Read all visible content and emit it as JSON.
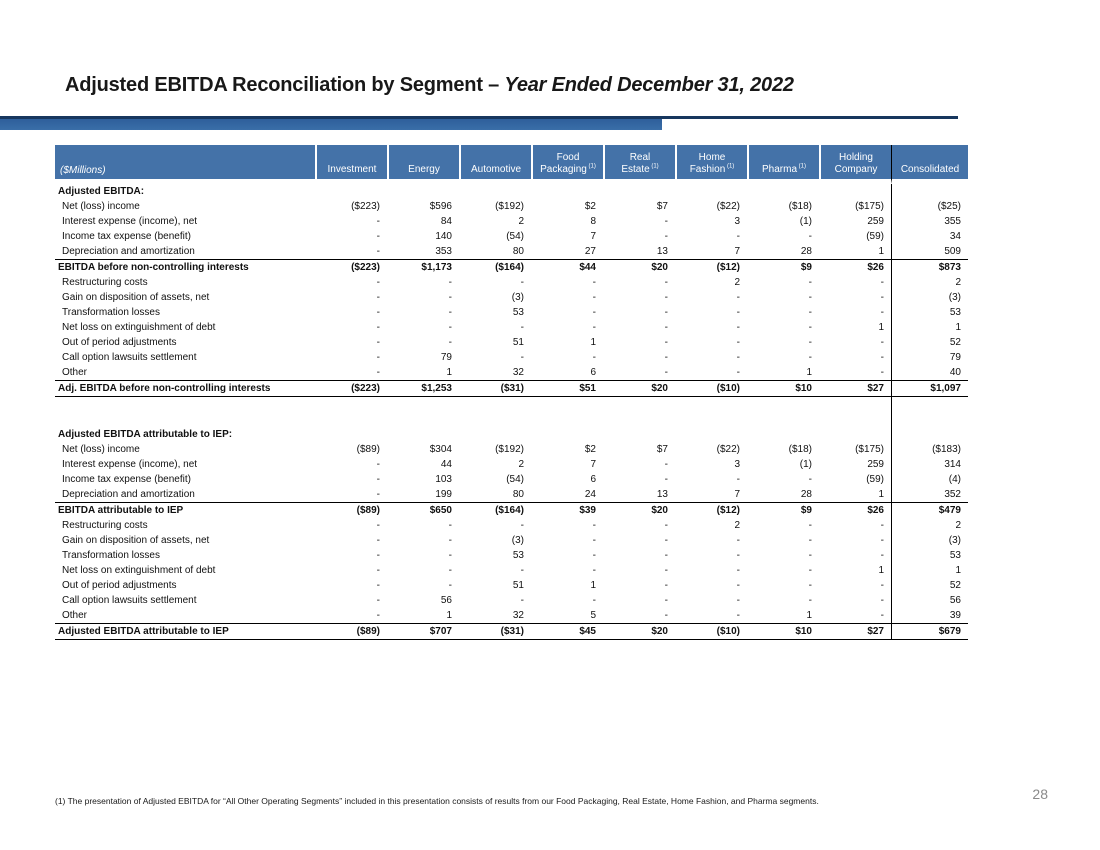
{
  "theme": {
    "header_bg": "#4472A8",
    "header_text": "#FFFFFF",
    "accent_bar": "#2E5F9B",
    "accent_bar2": "#3A6EA8",
    "accent_line": "#17375E",
    "border_color": "#000000",
    "page_number_color": "#8A8A8A"
  },
  "slide": {
    "title": {
      "regular": "Adjusted EBITDA Reconciliation by Segment – ",
      "italic": "Year Ended December 31, 2022"
    },
    "footnote": "(1) The presentation of Adjusted EBITDA for “All Other Operating Segments” included in this presentation consists of results from our Food Packaging, Real Estate, Home Fashion, and Pharma segments.",
    "page_number": "28"
  },
  "table": {
    "row_label_header": "($Millions)",
    "columns": [
      {
        "lines": [
          "Investment"
        ],
        "sup": ""
      },
      {
        "lines": [
          "Energy"
        ],
        "sup": ""
      },
      {
        "lines": [
          "Automotive"
        ],
        "sup": ""
      },
      {
        "lines": [
          "Food",
          "Packaging"
        ],
        "sup": "(1)"
      },
      {
        "lines": [
          "Real",
          "Estate"
        ],
        "sup": "(1)"
      },
      {
        "lines": [
          "Home",
          "Fashion"
        ],
        "sup": "(1)"
      },
      {
        "lines": [
          "Pharma"
        ],
        "sup": "(1)"
      },
      {
        "lines": [
          "Holding",
          "Company"
        ],
        "sup": ""
      },
      {
        "lines": [
          "Consolidated"
        ],
        "sup": ""
      }
    ],
    "rows": [
      {
        "type": "section",
        "label": "Adjusted EBITDA:",
        "values": []
      },
      {
        "type": "item",
        "label": "Net (loss) income",
        "values": [
          "($223)",
          "$596",
          "($192)",
          "$2",
          "$7",
          "($22)",
          "($18)",
          "($175)",
          "($25)"
        ]
      },
      {
        "type": "item",
        "label": "Interest expense (income), net",
        "values": [
          "-",
          "84",
          "2",
          "8",
          "-",
          "3",
          "(1)",
          "259",
          "355"
        ]
      },
      {
        "type": "item",
        "label": "Income tax expense (benefit)",
        "values": [
          "-",
          "140",
          "(54)",
          "7",
          "-",
          "-",
          "-",
          "(59)",
          "34"
        ]
      },
      {
        "type": "item",
        "label": "Depreciation and amortization",
        "values": [
          "-",
          "353",
          "80",
          "27",
          "13",
          "7",
          "28",
          "1",
          "509"
        ]
      },
      {
        "type": "subtotal",
        "label": "EBITDA before non-controlling interests",
        "values": [
          "($223)",
          "$1,173",
          "($164)",
          "$44",
          "$20",
          "($12)",
          "$9",
          "$26",
          "$873"
        ]
      },
      {
        "type": "item",
        "label": "Restructuring costs",
        "values": [
          "-",
          "-",
          "-",
          "-",
          "-",
          "2",
          "-",
          "-",
          "2"
        ]
      },
      {
        "type": "item",
        "label": "Gain on disposition of assets, net",
        "values": [
          "-",
          "-",
          "(3)",
          "-",
          "-",
          "-",
          "-",
          "-",
          "(3)"
        ]
      },
      {
        "type": "item",
        "label": "Transformation losses",
        "values": [
          "-",
          "-",
          "53",
          "-",
          "-",
          "-",
          "-",
          "-",
          "53"
        ]
      },
      {
        "type": "item",
        "label": "Net loss on extinguishment of debt",
        "values": [
          "-",
          "-",
          "-",
          "-",
          "-",
          "-",
          "-",
          "1",
          "1"
        ]
      },
      {
        "type": "item",
        "label": "Out of period adjustments",
        "values": [
          "-",
          "-",
          "51",
          "1",
          "-",
          "-",
          "-",
          "-",
          "52"
        ]
      },
      {
        "type": "item",
        "label": "Call option lawsuits settlement",
        "values": [
          "-",
          "79",
          "-",
          "-",
          "-",
          "-",
          "-",
          "-",
          "79"
        ]
      },
      {
        "type": "item",
        "label": "Other",
        "values": [
          "-",
          "1",
          "32",
          "6",
          "-",
          "-",
          "1",
          "-",
          "40"
        ]
      },
      {
        "type": "total",
        "label": "Adj. EBITDA before non-controlling interests",
        "values": [
          "($223)",
          "$1,253",
          "($31)",
          "$51",
          "$20",
          "($10)",
          "$10",
          "$27",
          "$1,097"
        ]
      },
      {
        "type": "spacer",
        "label": "",
        "values": []
      },
      {
        "type": "spacer",
        "label": "",
        "values": []
      },
      {
        "type": "section",
        "label": "Adjusted EBITDA attributable to IEP:",
        "values": []
      },
      {
        "type": "item",
        "label": "Net (loss) income",
        "values": [
          "($89)",
          "$304",
          "($192)",
          "$2",
          "$7",
          "($22)",
          "($18)",
          "($175)",
          "($183)"
        ]
      },
      {
        "type": "item",
        "label": "Interest expense (income), net",
        "values": [
          "-",
          "44",
          "2",
          "7",
          "-",
          "3",
          "(1)",
          "259",
          "314"
        ]
      },
      {
        "type": "item",
        "label": "Income tax expense (benefit)",
        "values": [
          "-",
          "103",
          "(54)",
          "6",
          "-",
          "-",
          "-",
          "(59)",
          "(4)"
        ]
      },
      {
        "type": "item",
        "label": "Depreciation and amortization",
        "values": [
          "-",
          "199",
          "80",
          "24",
          "13",
          "7",
          "28",
          "1",
          "352"
        ]
      },
      {
        "type": "subtotal",
        "label": "EBITDA attributable to IEP",
        "values": [
          "($89)",
          "$650",
          "($164)",
          "$39",
          "$20",
          "($12)",
          "$9",
          "$26",
          "$479"
        ]
      },
      {
        "type": "item",
        "label": "Restructuring costs",
        "values": [
          "-",
          "-",
          "-",
          "-",
          "-",
          "2",
          "-",
          "-",
          "2"
        ]
      },
      {
        "type": "item",
        "label": "Gain on disposition of assets, net",
        "values": [
          "-",
          "-",
          "(3)",
          "-",
          "-",
          "-",
          "-",
          "-",
          "(3)"
        ]
      },
      {
        "type": "item",
        "label": "Transformation losses",
        "values": [
          "-",
          "-",
          "53",
          "-",
          "-",
          "-",
          "-",
          "-",
          "53"
        ]
      },
      {
        "type": "item",
        "label": "Net loss on extinguishment of debt",
        "values": [
          "-",
          "-",
          "-",
          "-",
          "-",
          "-",
          "-",
          "1",
          "1"
        ]
      },
      {
        "type": "item",
        "label": "Out of period adjustments",
        "values": [
          "-",
          "-",
          "51",
          "1",
          "-",
          "-",
          "-",
          "-",
          "52"
        ]
      },
      {
        "type": "item",
        "label": "Call option lawsuits settlement",
        "values": [
          "-",
          "56",
          "-",
          "-",
          "-",
          "-",
          "-",
          "-",
          "56"
        ]
      },
      {
        "type": "item",
        "label": "Other",
        "values": [
          "-",
          "1",
          "32",
          "5",
          "-",
          "-",
          "1",
          "-",
          "39"
        ]
      },
      {
        "type": "total",
        "label": "Adjusted EBITDA attributable to IEP",
        "values": [
          "($89)",
          "$707",
          "($31)",
          "$45",
          "$20",
          "($10)",
          "$10",
          "$27",
          "$679"
        ]
      }
    ]
  }
}
